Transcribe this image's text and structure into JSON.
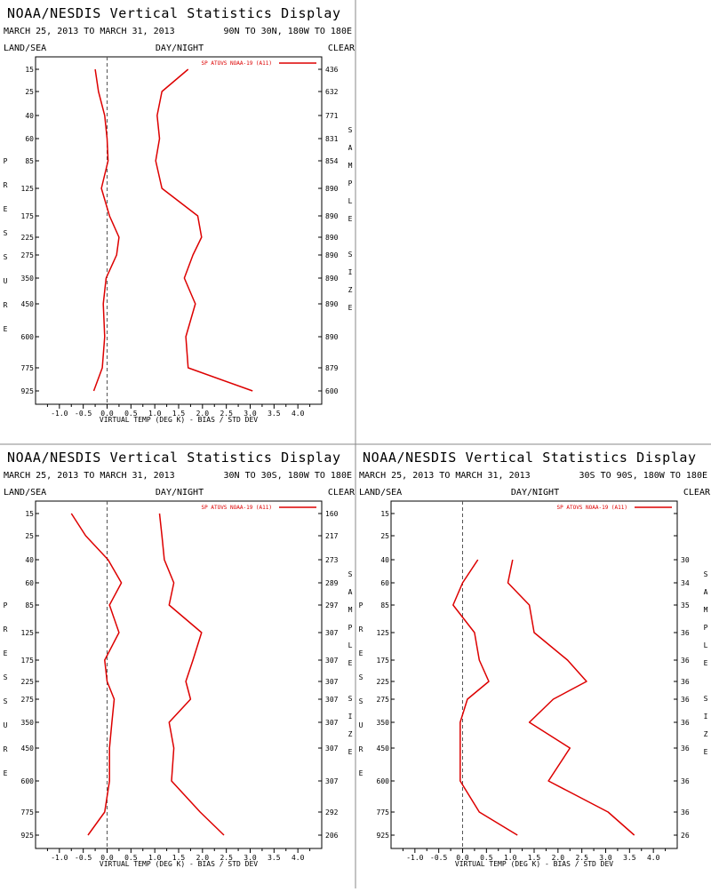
{
  "colors": {
    "line": "#dd0000",
    "ink": "#000000",
    "divider": "#888888",
    "zero_line": "#555555"
  },
  "panel_common": {
    "title": "NOAA/NESDIS Vertical Statistics Display",
    "date_range": "MARCH 25, 2013 TO MARCH 31, 2013",
    "label_land_sea": "LAND/SEA",
    "label_day_night": "DAY/NIGHT",
    "label_clear": "CLEAR",
    "left_axis_letters": [
      "P",
      "R",
      "E",
      "S",
      "S",
      "U",
      "R",
      "E"
    ],
    "right_axis_letters": [
      "S",
      "A",
      "M",
      "P",
      "L",
      "E",
      "",
      "S",
      "I",
      "Z",
      "E"
    ],
    "x_axis_title": "VIRTUAL TEMP (DEG K) - BIAS / STD DEV",
    "legend_label": "SP ATOVS NOAA-19 (A11)"
  },
  "chart_data": [
    {
      "type": "line",
      "region": "90N TO 30N, 180W TO 180E",
      "xlabel": "VIRTUAL TEMP (DEG K) - BIAS / STD DEV",
      "ylabel": "PRESSURE",
      "xlim": [
        -1.5,
        4.5
      ],
      "x_ticks": [
        "-1.0",
        "-0.5",
        "0.0",
        "0.5",
        "1.0",
        "1.5",
        "2.0",
        "2.5",
        "3.0",
        "3.5",
        "4.0"
      ],
      "pressure_levels": [
        "15",
        "25",
        "40",
        "60",
        "85",
        "125",
        "175",
        "225",
        "275",
        "350",
        "450",
        "600",
        "775",
        "925"
      ],
      "sample_size": [
        "436",
        "632",
        "771",
        "831",
        "854",
        "890",
        "890",
        "890",
        "890",
        "890",
        "890",
        "890",
        "879",
        "600"
      ],
      "series": [
        {
          "role": "bias",
          "values": [
            -0.25,
            -0.18,
            -0.05,
            0.0,
            0.02,
            -0.12,
            0.05,
            0.25,
            0.2,
            -0.02,
            -0.08,
            -0.05,
            -0.1,
            -0.28
          ]
        },
        {
          "role": "std_dev",
          "values": [
            1.7,
            1.15,
            1.05,
            1.1,
            1.02,
            1.15,
            1.9,
            1.98,
            1.8,
            1.62,
            1.85,
            1.65,
            1.7,
            3.05
          ]
        }
      ]
    },
    {
      "type": "line",
      "region": "30N TO 30S, 180W TO 180E",
      "xlabel": "VIRTUAL TEMP (DEG K) - BIAS / STD DEV",
      "ylabel": "PRESSURE",
      "xlim": [
        -1.5,
        4.5
      ],
      "x_ticks": [
        "-1.0",
        "-0.5",
        "0.0",
        "0.5",
        "1.0",
        "1.5",
        "2.0",
        "2.5",
        "3.0",
        "3.5",
        "4.0"
      ],
      "pressure_levels": [
        "15",
        "25",
        "40",
        "60",
        "85",
        "125",
        "175",
        "225",
        "275",
        "350",
        "450",
        "600",
        "775",
        "925"
      ],
      "sample_size": [
        "160",
        "217",
        "273",
        "289",
        "297",
        "307",
        "307",
        "307",
        "307",
        "307",
        "307",
        "307",
        "292",
        "206"
      ],
      "series": [
        {
          "role": "bias",
          "values": [
            -0.75,
            -0.45,
            0.02,
            0.3,
            0.05,
            0.25,
            -0.05,
            0.0,
            0.15,
            0.1,
            0.05,
            0.05,
            -0.05,
            -0.4
          ]
        },
        {
          "role": "std_dev",
          "values": [
            1.1,
            1.15,
            1.2,
            1.4,
            1.3,
            1.98,
            1.8,
            1.65,
            1.75,
            1.3,
            1.4,
            1.35,
            1.95,
            2.45
          ]
        }
      ]
    },
    {
      "type": "line",
      "region": "30S TO 90S, 180W TO 180E",
      "xlabel": "VIRTUAL TEMP (DEG K) - BIAS / STD DEV",
      "ylabel": "PRESSURE",
      "xlim": [
        -1.5,
        4.5
      ],
      "x_ticks": [
        "-1.0",
        "-0.5",
        "0.0",
        "0.5",
        "1.0",
        "1.5",
        "2.0",
        "2.5",
        "3.0",
        "3.5",
        "4.0"
      ],
      "pressure_levels": [
        "15",
        "25",
        "40",
        "60",
        "85",
        "125",
        "175",
        "225",
        "275",
        "350",
        "450",
        "600",
        "775",
        "925"
      ],
      "sample_size": [
        "",
        "",
        "30",
        "34",
        "35",
        "36",
        "36",
        "36",
        "36",
        "36",
        "36",
        "36",
        "36",
        "26"
      ],
      "series": [
        {
          "role": "bias",
          "values": [
            null,
            null,
            0.32,
            0.0,
            -0.2,
            0.25,
            0.35,
            0.55,
            0.1,
            -0.05,
            -0.05,
            -0.05,
            0.35,
            1.15
          ]
        },
        {
          "role": "std_dev",
          "values": [
            null,
            null,
            1.05,
            0.95,
            1.4,
            1.5,
            2.2,
            2.6,
            1.9,
            1.4,
            2.25,
            1.8,
            3.05,
            3.6
          ]
        }
      ]
    }
  ]
}
